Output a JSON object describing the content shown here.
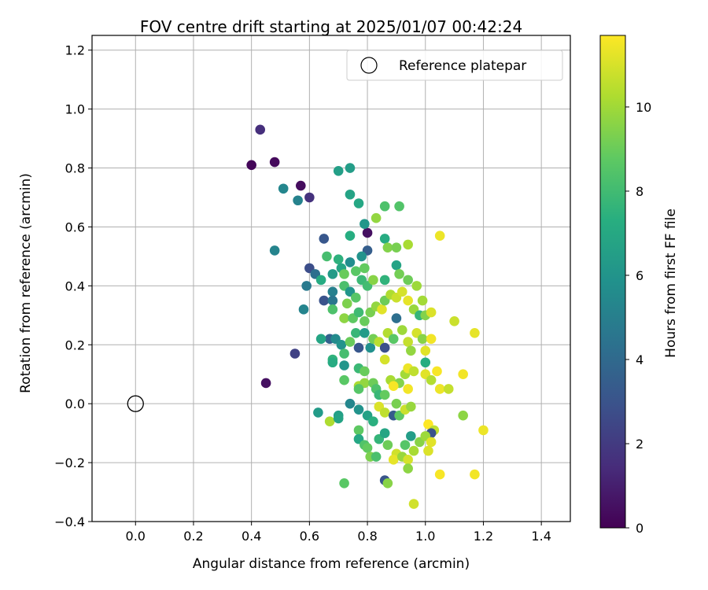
{
  "chart_data": {
    "type": "scatter",
    "title": "FOV centre drift starting at 2025/01/07 00:42:24",
    "xlabel": "Angular distance from reference (arcmin)",
    "ylabel": "Rotation from reference (arcmin)",
    "xlim": [
      -0.15,
      1.5
    ],
    "ylim": [
      -0.4,
      1.25
    ],
    "xticks": [
      0.0,
      0.2,
      0.4,
      0.6,
      0.8,
      1.0,
      1.2,
      1.4
    ],
    "xtick_labels": [
      "0.0",
      "0.2",
      "0.4",
      "0.6",
      "0.8",
      "1.0",
      "1.2",
      "1.4"
    ],
    "yticks": [
      -0.4,
      -0.2,
      0.0,
      0.2,
      0.4,
      0.6,
      0.8,
      1.0,
      1.2
    ],
    "ytick_labels": [
      "−0.4",
      "−0.2",
      "0.0",
      "0.2",
      "0.4",
      "0.6",
      "0.8",
      "1.0",
      "1.2"
    ],
    "grid": true,
    "legend": {
      "position": "top-right",
      "entries": [
        "Reference platepar"
      ]
    },
    "reference_point": {
      "x": 0.0,
      "y": 0.0
    },
    "colorbar": {
      "label": "Hours from first FF file",
      "colormap": "viridis",
      "range": [
        0,
        11.7
      ],
      "ticks": [
        0,
        2,
        4,
        6,
        8,
        10
      ],
      "tick_labels": [
        "0",
        "2",
        "4",
        "6",
        "8",
        "10"
      ]
    },
    "points": [
      {
        "x": 0.4,
        "y": 0.81,
        "h": 0.2
      },
      {
        "x": 0.48,
        "y": 0.82,
        "h": 0.3
      },
      {
        "x": 0.43,
        "y": 0.93,
        "h": 1.6
      },
      {
        "x": 0.57,
        "y": 0.74,
        "h": 0.4
      },
      {
        "x": 0.6,
        "y": 0.7,
        "h": 1.7
      },
      {
        "x": 0.56,
        "y": 0.69,
        "h": 5.2
      },
      {
        "x": 0.51,
        "y": 0.73,
        "h": 5.4
      },
      {
        "x": 0.7,
        "y": 0.79,
        "h": 6.6
      },
      {
        "x": 0.74,
        "y": 0.8,
        "h": 6.5
      },
      {
        "x": 0.74,
        "y": 0.71,
        "h": 6.8
      },
      {
        "x": 0.77,
        "y": 0.68,
        "h": 7.0
      },
      {
        "x": 0.48,
        "y": 0.52,
        "h": 5.3
      },
      {
        "x": 0.8,
        "y": 0.58,
        "h": 0.5
      },
      {
        "x": 0.79,
        "y": 0.61,
        "h": 6.2
      },
      {
        "x": 0.83,
        "y": 0.63,
        "h": 9.8
      },
      {
        "x": 0.86,
        "y": 0.67,
        "h": 8.4
      },
      {
        "x": 0.91,
        "y": 0.67,
        "h": 8.5
      },
      {
        "x": 0.86,
        "y": 0.56,
        "h": 7.2
      },
      {
        "x": 0.87,
        "y": 0.53,
        "h": 9.5
      },
      {
        "x": 0.9,
        "y": 0.53,
        "h": 9.3
      },
      {
        "x": 0.94,
        "y": 0.54,
        "h": 10.2
      },
      {
        "x": 0.65,
        "y": 0.56,
        "h": 3.2
      },
      {
        "x": 0.74,
        "y": 0.57,
        "h": 7.3
      },
      {
        "x": 0.8,
        "y": 0.52,
        "h": 3.5
      },
      {
        "x": 0.78,
        "y": 0.5,
        "h": 6.0
      },
      {
        "x": 0.7,
        "y": 0.49,
        "h": 7.5
      },
      {
        "x": 0.74,
        "y": 0.48,
        "h": 5.7
      },
      {
        "x": 0.66,
        "y": 0.5,
        "h": 8.2
      },
      {
        "x": 0.6,
        "y": 0.46,
        "h": 2.8
      },
      {
        "x": 0.62,
        "y": 0.44,
        "h": 4.3
      },
      {
        "x": 0.64,
        "y": 0.42,
        "h": 7.2
      },
      {
        "x": 0.68,
        "y": 0.44,
        "h": 6.4
      },
      {
        "x": 0.71,
        "y": 0.46,
        "h": 6.9
      },
      {
        "x": 0.72,
        "y": 0.44,
        "h": 9.0
      },
      {
        "x": 0.76,
        "y": 0.45,
        "h": 8.7
      },
      {
        "x": 0.79,
        "y": 0.46,
        "h": 8.9
      },
      {
        "x": 0.78,
        "y": 0.42,
        "h": 7.9
      },
      {
        "x": 0.8,
        "y": 0.4,
        "h": 8.1
      },
      {
        "x": 0.82,
        "y": 0.42,
        "h": 9.6
      },
      {
        "x": 0.86,
        "y": 0.42,
        "h": 7.6
      },
      {
        "x": 0.9,
        "y": 0.47,
        "h": 6.8
      },
      {
        "x": 0.91,
        "y": 0.44,
        "h": 9.2
      },
      {
        "x": 0.94,
        "y": 0.42,
        "h": 9.1
      },
      {
        "x": 0.97,
        "y": 0.4,
        "h": 10.0
      },
      {
        "x": 0.59,
        "y": 0.4,
        "h": 4.8
      },
      {
        "x": 0.65,
        "y": 0.35,
        "h": 3.0
      },
      {
        "x": 0.68,
        "y": 0.38,
        "h": 5.1
      },
      {
        "x": 0.68,
        "y": 0.35,
        "h": 4.6
      },
      {
        "x": 0.72,
        "y": 0.4,
        "h": 8.3
      },
      {
        "x": 0.74,
        "y": 0.38,
        "h": 6.1
      },
      {
        "x": 0.76,
        "y": 0.36,
        "h": 8.6
      },
      {
        "x": 0.73,
        "y": 0.34,
        "h": 9.4
      },
      {
        "x": 0.58,
        "y": 0.32,
        "h": 5.3
      },
      {
        "x": 0.68,
        "y": 0.32,
        "h": 8.4
      },
      {
        "x": 0.72,
        "y": 0.29,
        "h": 9.7
      },
      {
        "x": 0.75,
        "y": 0.29,
        "h": 8.8
      },
      {
        "x": 0.77,
        "y": 0.31,
        "h": 8.0
      },
      {
        "x": 0.79,
        "y": 0.28,
        "h": 9.0
      },
      {
        "x": 0.81,
        "y": 0.31,
        "h": 9.3
      },
      {
        "x": 0.83,
        "y": 0.33,
        "h": 9.8
      },
      {
        "x": 0.85,
        "y": 0.32,
        "h": 11.2
      },
      {
        "x": 0.86,
        "y": 0.35,
        "h": 9.1
      },
      {
        "x": 0.88,
        "y": 0.37,
        "h": 10.3
      },
      {
        "x": 0.9,
        "y": 0.36,
        "h": 10.8
      },
      {
        "x": 0.92,
        "y": 0.38,
        "h": 11.0
      },
      {
        "x": 0.94,
        "y": 0.35,
        "h": 11.3
      },
      {
        "x": 0.96,
        "y": 0.32,
        "h": 9.9
      },
      {
        "x": 0.99,
        "y": 0.35,
        "h": 10.1
      },
      {
        "x": 0.98,
        "y": 0.3,
        "h": 7.7
      },
      {
        "x": 1.0,
        "y": 0.3,
        "h": 9.5
      },
      {
        "x": 1.02,
        "y": 0.31,
        "h": 11.1
      },
      {
        "x": 1.05,
        "y": 0.57,
        "h": 11.4
      },
      {
        "x": 0.67,
        "y": 0.22,
        "h": 3.7
      },
      {
        "x": 0.64,
        "y": 0.22,
        "h": 6.9
      },
      {
        "x": 0.69,
        "y": 0.22,
        "h": 5.6
      },
      {
        "x": 0.71,
        "y": 0.2,
        "h": 6.0
      },
      {
        "x": 0.74,
        "y": 0.21,
        "h": 9.0
      },
      {
        "x": 0.76,
        "y": 0.24,
        "h": 7.8
      },
      {
        "x": 0.77,
        "y": 0.19,
        "h": 3.2
      },
      {
        "x": 0.79,
        "y": 0.24,
        "h": 6.4
      },
      {
        "x": 0.81,
        "y": 0.19,
        "h": 5.9
      },
      {
        "x": 0.82,
        "y": 0.22,
        "h": 9.2
      },
      {
        "x": 0.84,
        "y": 0.21,
        "h": 10.5
      },
      {
        "x": 0.86,
        "y": 0.19,
        "h": 2.9
      },
      {
        "x": 0.87,
        "y": 0.24,
        "h": 10.4
      },
      {
        "x": 0.89,
        "y": 0.22,
        "h": 8.7
      },
      {
        "x": 0.9,
        "y": 0.29,
        "h": 4.3
      },
      {
        "x": 0.92,
        "y": 0.25,
        "h": 10.0
      },
      {
        "x": 0.94,
        "y": 0.21,
        "h": 10.7
      },
      {
        "x": 0.95,
        "y": 0.18,
        "h": 9.8
      },
      {
        "x": 0.97,
        "y": 0.24,
        "h": 11.0
      },
      {
        "x": 0.99,
        "y": 0.22,
        "h": 9.6
      },
      {
        "x": 1.0,
        "y": 0.18,
        "h": 11.2
      },
      {
        "x": 1.02,
        "y": 0.22,
        "h": 11.5
      },
      {
        "x": 1.1,
        "y": 0.28,
        "h": 10.8
      },
      {
        "x": 1.17,
        "y": 0.24,
        "h": 11.3
      },
      {
        "x": 0.55,
        "y": 0.17,
        "h": 2.3
      },
      {
        "x": 0.68,
        "y": 0.15,
        "h": 7.6
      },
      {
        "x": 0.68,
        "y": 0.14,
        "h": 7.2
      },
      {
        "x": 0.72,
        "y": 0.17,
        "h": 8.2
      },
      {
        "x": 0.72,
        "y": 0.13,
        "h": 6.1
      },
      {
        "x": 0.77,
        "y": 0.12,
        "h": 7.9
      },
      {
        "x": 0.79,
        "y": 0.11,
        "h": 9.0
      },
      {
        "x": 0.86,
        "y": 0.15,
        "h": 11.0
      },
      {
        "x": 0.88,
        "y": 0.08,
        "h": 10.2
      },
      {
        "x": 0.91,
        "y": 0.07,
        "h": 9.5
      },
      {
        "x": 0.93,
        "y": 0.1,
        "h": 10.1
      },
      {
        "x": 0.94,
        "y": 0.12,
        "h": 11.4
      },
      {
        "x": 0.96,
        "y": 0.11,
        "h": 10.6
      },
      {
        "x": 1.0,
        "y": 0.14,
        "h": 7.3
      },
      {
        "x": 1.0,
        "y": 0.1,
        "h": 11.2
      },
      {
        "x": 1.04,
        "y": 0.11,
        "h": 11.6
      },
      {
        "x": 1.02,
        "y": 0.08,
        "h": 10.4
      },
      {
        "x": 1.05,
        "y": 0.05,
        "h": 11.4
      },
      {
        "x": 1.08,
        "y": 0.05,
        "h": 10.7
      },
      {
        "x": 1.13,
        "y": 0.1,
        "h": 11.5
      },
      {
        "x": 0.45,
        "y": 0.07,
        "h": 0.5
      },
      {
        "x": 0.72,
        "y": 0.08,
        "h": 8.7
      },
      {
        "x": 0.77,
        "y": 0.06,
        "h": 10.3
      },
      {
        "x": 0.79,
        "y": 0.07,
        "h": 9.8
      },
      {
        "x": 0.77,
        "y": 0.05,
        "h": 8.6
      },
      {
        "x": 0.82,
        "y": 0.07,
        "h": 9.1
      },
      {
        "x": 0.83,
        "y": 0.05,
        "h": 8.4
      },
      {
        "x": 0.84,
        "y": 0.03,
        "h": 7.8
      },
      {
        "x": 0.86,
        "y": 0.03,
        "h": 8.9
      },
      {
        "x": 0.89,
        "y": 0.06,
        "h": 11.6
      },
      {
        "x": 0.94,
        "y": 0.05,
        "h": 11.5
      },
      {
        "x": 0.9,
        "y": 0.0,
        "h": 9.3
      },
      {
        "x": 0.63,
        "y": -0.03,
        "h": 6.4
      },
      {
        "x": 0.67,
        "y": -0.06,
        "h": 10.3
      },
      {
        "x": 0.7,
        "y": -0.04,
        "h": 6.6
      },
      {
        "x": 0.74,
        "y": 0.0,
        "h": 5.4
      },
      {
        "x": 0.7,
        "y": -0.05,
        "h": 6.8
      },
      {
        "x": 0.77,
        "y": -0.02,
        "h": 6.0
      },
      {
        "x": 0.8,
        "y": -0.04,
        "h": 6.7
      },
      {
        "x": 0.82,
        "y": -0.06,
        "h": 7.4
      },
      {
        "x": 0.84,
        "y": -0.01,
        "h": 11.1
      },
      {
        "x": 0.86,
        "y": -0.03,
        "h": 10.6
      },
      {
        "x": 0.89,
        "y": -0.04,
        "h": 3.4
      },
      {
        "x": 0.91,
        "y": -0.04,
        "h": 8.8
      },
      {
        "x": 0.93,
        "y": -0.02,
        "h": 10.8
      },
      {
        "x": 0.95,
        "y": -0.01,
        "h": 9.9
      },
      {
        "x": 1.01,
        "y": -0.07,
        "h": 11.7
      },
      {
        "x": 1.03,
        "y": -0.09,
        "h": 10.6
      },
      {
        "x": 1.02,
        "y": -0.1,
        "h": 3.0
      },
      {
        "x": 1.13,
        "y": -0.04,
        "h": 9.7
      },
      {
        "x": 1.2,
        "y": -0.09,
        "h": 11.4
      },
      {
        "x": 0.77,
        "y": -0.09,
        "h": 8.8
      },
      {
        "x": 0.77,
        "y": -0.12,
        "h": 7.0
      },
      {
        "x": 0.79,
        "y": -0.14,
        "h": 8.5
      },
      {
        "x": 0.8,
        "y": -0.15,
        "h": 8.9
      },
      {
        "x": 0.84,
        "y": -0.12,
        "h": 7.7
      },
      {
        "x": 0.86,
        "y": -0.1,
        "h": 6.9
      },
      {
        "x": 0.87,
        "y": -0.14,
        "h": 9.1
      },
      {
        "x": 0.9,
        "y": -0.17,
        "h": 10.9
      },
      {
        "x": 0.93,
        "y": -0.14,
        "h": 8.6
      },
      {
        "x": 0.95,
        "y": -0.11,
        "h": 6.5
      },
      {
        "x": 0.96,
        "y": -0.16,
        "h": 10.2
      },
      {
        "x": 0.98,
        "y": -0.13,
        "h": 9.6
      },
      {
        "x": 1.0,
        "y": -0.11,
        "h": 10.0
      },
      {
        "x": 1.02,
        "y": -0.13,
        "h": 11.2
      },
      {
        "x": 1.01,
        "y": -0.16,
        "h": 11.1
      },
      {
        "x": 0.81,
        "y": -0.18,
        "h": 9.4
      },
      {
        "x": 0.83,
        "y": -0.18,
        "h": 8.3
      },
      {
        "x": 0.89,
        "y": -0.19,
        "h": 11.3
      },
      {
        "x": 0.92,
        "y": -0.18,
        "h": 9.9
      },
      {
        "x": 0.94,
        "y": -0.19,
        "h": 11.0
      },
      {
        "x": 0.94,
        "y": -0.22,
        "h": 9.7
      },
      {
        "x": 0.86,
        "y": -0.26,
        "h": 3.1
      },
      {
        "x": 0.87,
        "y": -0.27,
        "h": 9.6
      },
      {
        "x": 0.72,
        "y": -0.27,
        "h": 8.7
      },
      {
        "x": 1.05,
        "y": -0.24,
        "h": 11.6
      },
      {
        "x": 1.17,
        "y": -0.24,
        "h": 11.5
      },
      {
        "x": 0.96,
        "y": -0.34,
        "h": 10.9
      }
    ]
  }
}
